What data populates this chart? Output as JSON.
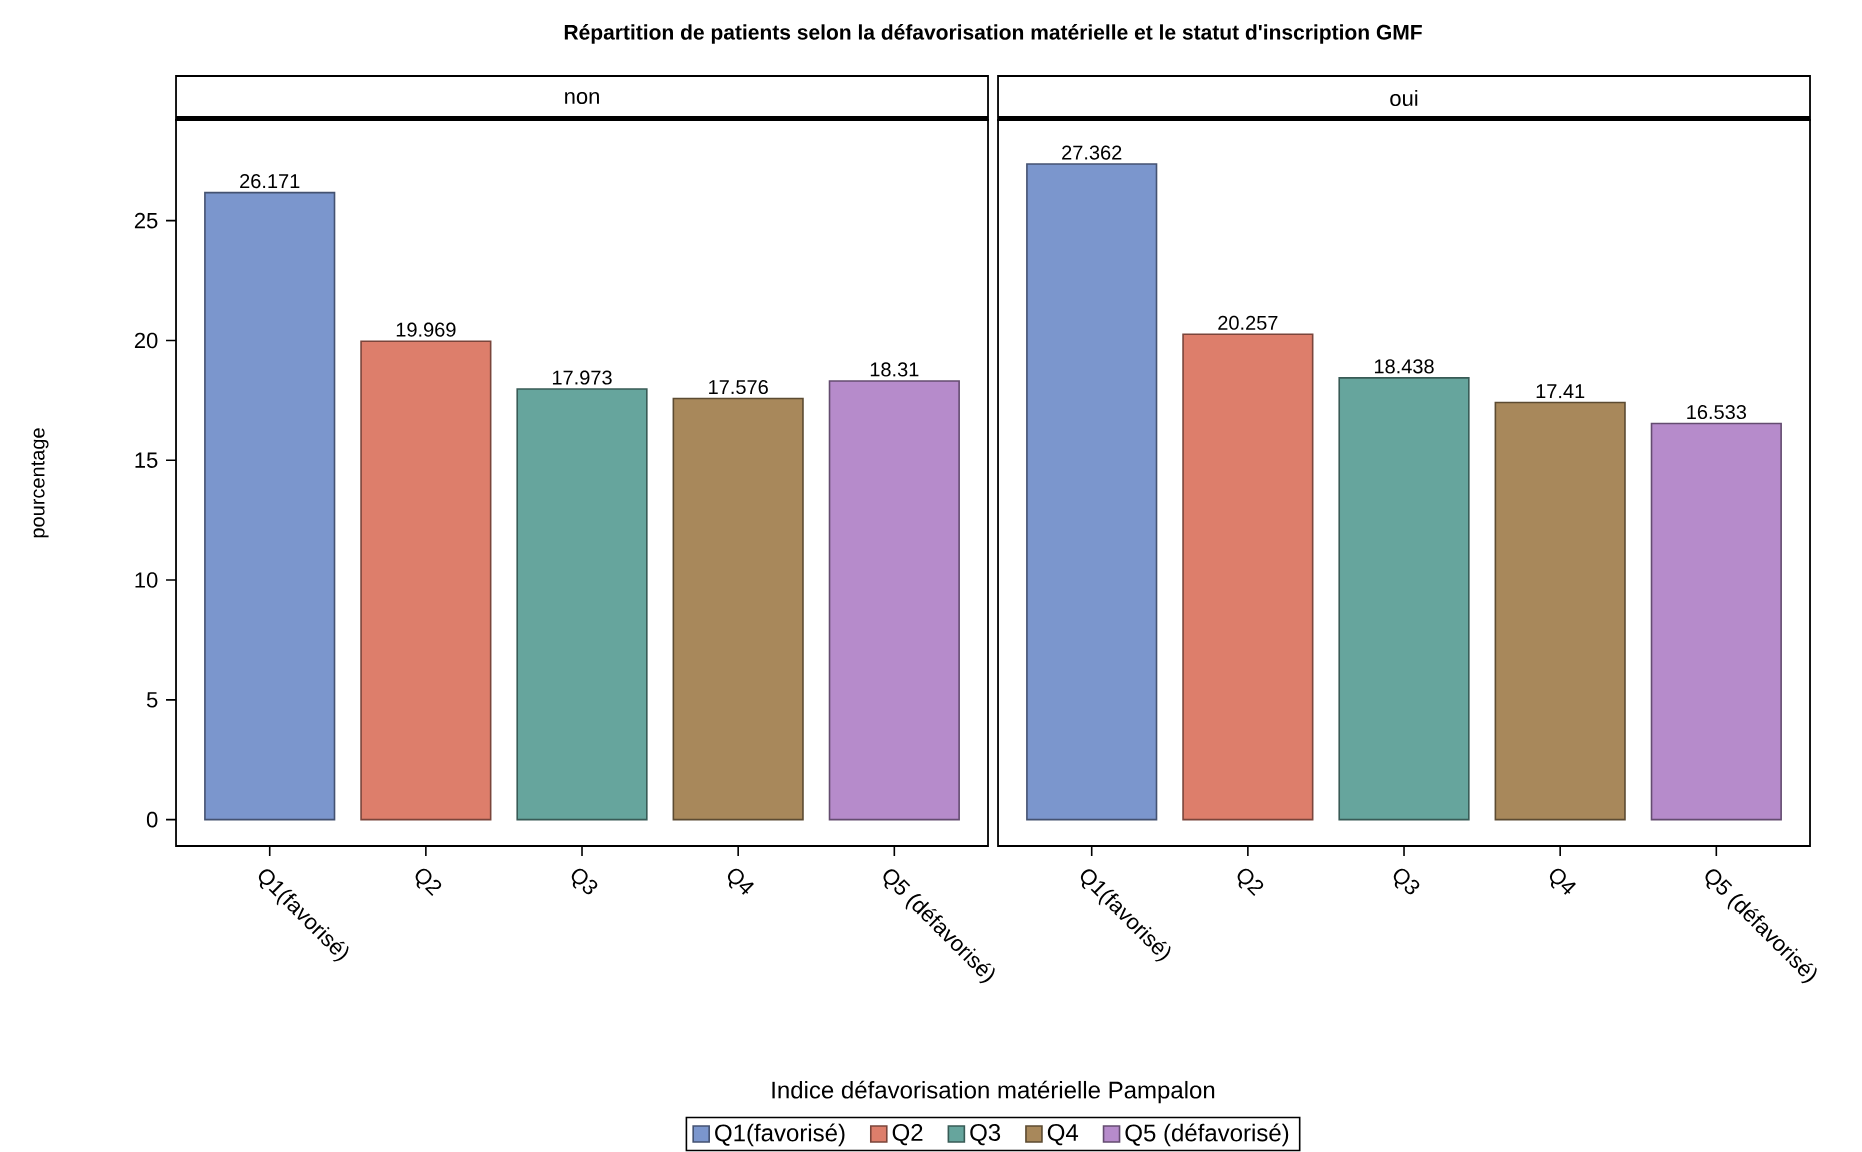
{
  "chart_data": [
    {
      "type": "bar",
      "title": "Répartition de patients selon la défavorisation matérielle et le statut d'inscription GMF",
      "subtitle": "non",
      "xlabel": "Indice défavorisation matérielle Pampalon",
      "ylabel": "pourcentage",
      "categories": [
        "Q1(favorisé)",
        "Q2",
        "Q3",
        "Q4",
        "Q5 (défavorisé)"
      ],
      "series": [
        {
          "name": "Q1(favorisé)",
          "color": "#7b96cd",
          "values": [
            26.171,
            null,
            null,
            null,
            null
          ]
        },
        {
          "name": "Q2",
          "color": "#dd7e6b",
          "values": [
            null,
            19.969,
            null,
            null,
            null
          ]
        },
        {
          "name": "Q3",
          "color": "#66a59d",
          "values": [
            null,
            null,
            17.973,
            null,
            null
          ]
        },
        {
          "name": "Q4",
          "color": "#a8885b",
          "values": [
            null,
            null,
            null,
            17.576,
            null
          ]
        },
        {
          "name": "Q5 (défavorisé)",
          "color": "#b68bcb",
          "values": [
            null,
            null,
            null,
            null,
            18.31
          ]
        }
      ],
      "ylim": [
        -1.1,
        29.2
      ],
      "yticks": [
        0,
        5,
        10,
        15,
        20,
        25
      ],
      "data_labels": true,
      "legend": "bottom"
    },
    {
      "type": "bar",
      "subtitle": "oui",
      "categories": [
        "Q1(favorisé)",
        "Q2",
        "Q3",
        "Q4",
        "Q5 (défavorisé)"
      ],
      "series": [
        {
          "color": "#7b96cd",
          "values": [
            27.362,
            null,
            null,
            null,
            null
          ]
        },
        {
          "color": "#dd7e6b",
          "values": [
            null,
            20.257,
            null,
            null,
            null
          ]
        },
        {
          "color": "#66a59d",
          "values": [
            null,
            null,
            18.438,
            null,
            null
          ]
        },
        {
          "color": "#a8885b",
          "values": [
            null,
            null,
            null,
            17.41,
            null
          ]
        },
        {
          "color": "#b68bcb",
          "values": [
            null,
            null,
            null,
            null,
            16.533
          ]
        }
      ],
      "ylim": [
        -1.1,
        29.2
      ],
      "yticks": [
        0,
        5,
        10,
        15,
        20,
        25
      ],
      "data_labels": true,
      "tick_labels": "x"
    }
  ]
}
